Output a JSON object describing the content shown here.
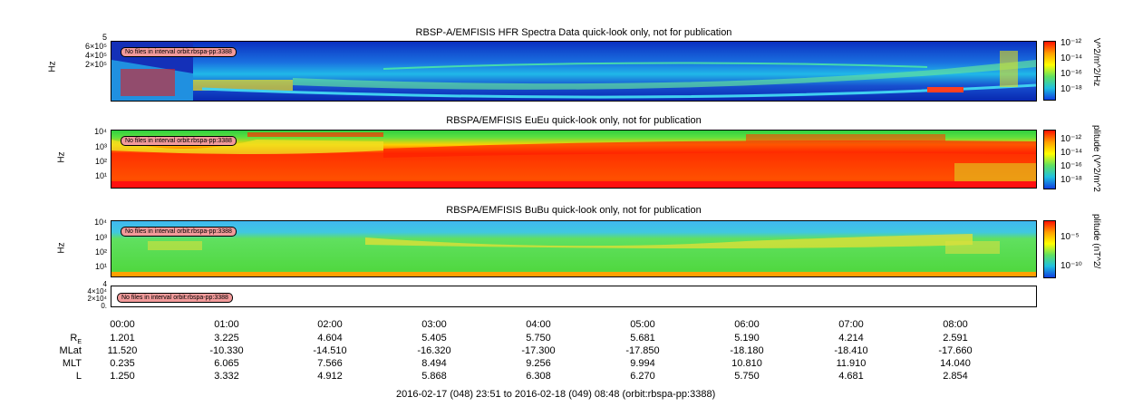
{
  "panels": [
    {
      "title": "RBSP-A/EMFISIS  HFR Spectra Data quick-look only, not for publication",
      "ylabel": "Hz",
      "yticks": [
        "5",
        "6×10⁵",
        "4×10⁵",
        "2×10⁵"
      ],
      "cb_label": "V^2/m^2/Hz",
      "cb_ticks": [
        "10⁻¹²",
        "10⁻¹⁴",
        "10⁻¹⁶",
        "10⁻¹⁸"
      ],
      "note": "No files in interval orbit:rbspa-pp:3388"
    },
    {
      "title": "RBSPA/EMFISIS  EuEu quick-look only, not for publication",
      "ylabel": "Hz",
      "yticks": [
        "10⁴",
        "10³",
        "10²",
        "10¹"
      ],
      "cb_label": "plitude (V^2/m^2",
      "cb_ticks": [
        "10⁻¹²",
        "10⁻¹⁴",
        "10⁻¹⁶",
        "10⁻¹⁸"
      ],
      "note": "No files in interval orbit:rbspa-pp:3388"
    },
    {
      "title": "RBSPA/EMFISIS  BuBu quick-look only, not for publication",
      "ylabel": "Hz",
      "yticks": [
        "10⁴",
        "10³",
        "10²",
        "10¹"
      ],
      "cb_label": "plitude (nT^2/",
      "cb_ticks": [
        "10⁻⁵",
        "10⁻¹⁰"
      ],
      "note": "No files in interval orbit:rbspa-pp:3388"
    },
    {
      "title": "",
      "ylabel": "",
      "yticks": [
        "4",
        "4×10⁴",
        "2×10⁴",
        "0."
      ],
      "note": "No files in interval orbit:rbspa-pp:3388"
    }
  ],
  "ephemeris": {
    "times": [
      "00:00",
      "01:00",
      "02:00",
      "03:00",
      "04:00",
      "05:00",
      "06:00",
      "07:00",
      "08:00"
    ],
    "rows": [
      {
        "label": "R",
        "sub": "E",
        "values": [
          "1.201",
          "3.225",
          "4.604",
          "5.405",
          "5.750",
          "5.681",
          "5.190",
          "4.214",
          "2.591"
        ]
      },
      {
        "label": "MLat",
        "sub": "",
        "values": [
          "11.520",
          "-10.330",
          "-14.510",
          "-16.320",
          "-17.300",
          "-17.850",
          "-18.180",
          "-18.410",
          "-17.660"
        ]
      },
      {
        "label": "MLT",
        "sub": "",
        "values": [
          "0.235",
          "6.065",
          "7.566",
          "8.494",
          "9.256",
          "9.994",
          "10.810",
          "11.910",
          "14.040"
        ]
      },
      {
        "label": "L",
        "sub": "",
        "values": [
          "1.250",
          "3.332",
          "4.912",
          "5.868",
          "6.308",
          "6.270",
          "5.750",
          "4.681",
          "2.854"
        ]
      }
    ]
  },
  "footer": "2016-02-17 (048) 23:51 to 2016-02-18 (049) 08:48 (orbit:rbspa-pp:3388)",
  "chart_data": [
    {
      "type": "heatmap",
      "title": "RBSP-A/EMFISIS  HFR Spectra Data quick-look only, not for publication",
      "ylabel": "Hz",
      "colorbar_label": "V^2/m^2/Hz",
      "colorbar_range": [
        "10⁻¹⁸",
        "10⁻¹²"
      ],
      "colors": {
        "background": "#1040d0",
        "band": "#20c8e0",
        "line": "#ffe040"
      }
    },
    {
      "type": "heatmap",
      "title": "RBSPA/EMFISIS  EuEu quick-look only, not for publication",
      "ylabel": "Hz",
      "colorbar_label": "plitude (V^2/m^2",
      "colorbar_range": [
        "10⁻¹⁸",
        "10⁻¹²"
      ],
      "colors": {
        "high": "#ff2000",
        "mid": "#ffd000",
        "low": "#30e030"
      }
    },
    {
      "type": "heatmap",
      "title": "RBSPA/EMFISIS  BuBu quick-look only, not for publication",
      "ylabel": "Hz",
      "colorbar_label": "plitude (nT^2/",
      "colorbar_ticks": [
        "10⁻⁵",
        "10⁻¹⁰"
      ],
      "colors": {
        "top": "#40c0f0",
        "body": "#40e040",
        "band": "#ffe040"
      }
    }
  ]
}
